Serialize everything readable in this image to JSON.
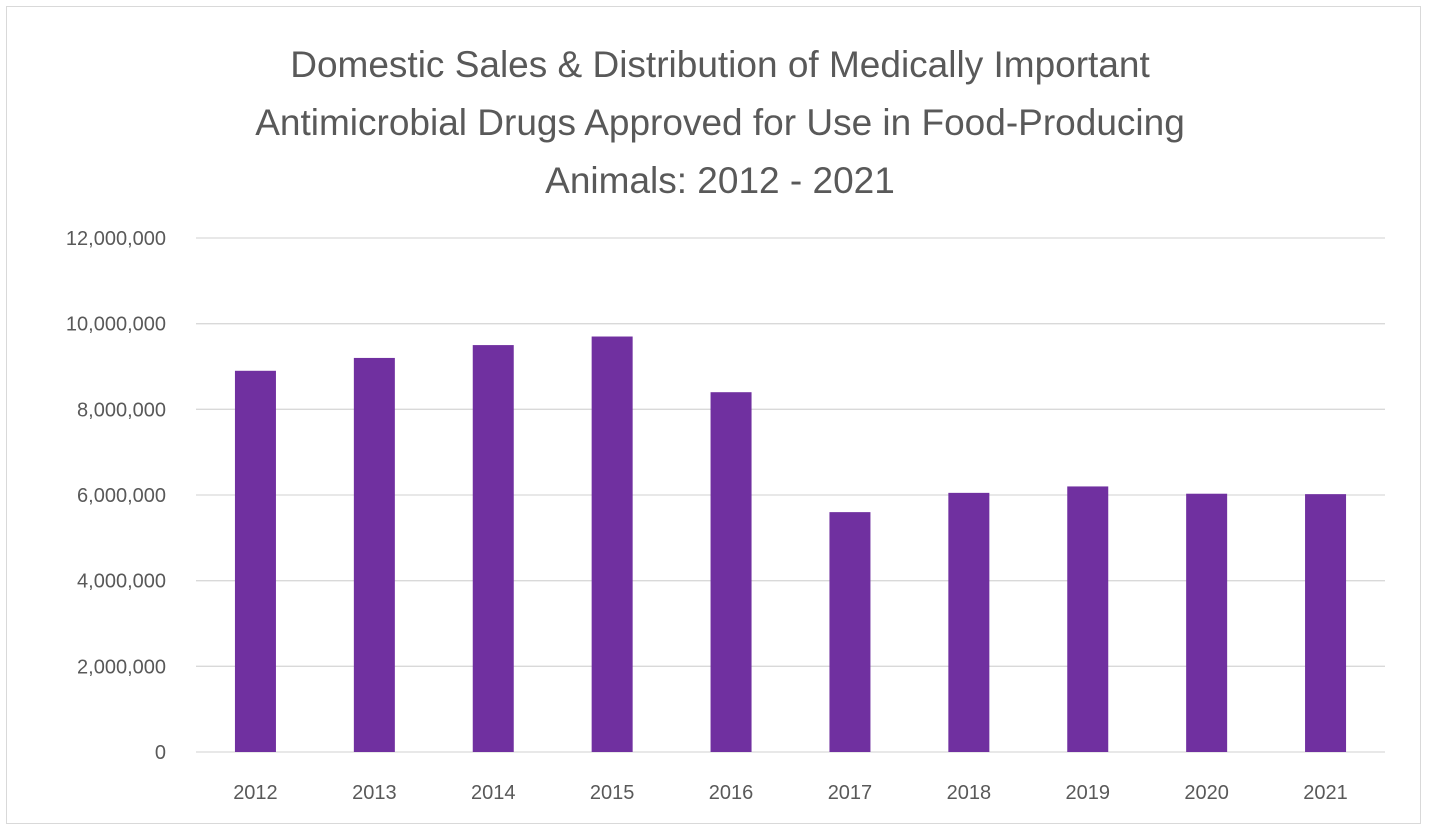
{
  "chart_data": {
    "type": "bar",
    "title_lines": [
      "Domestic Sales & Distribution of Medically Important",
      "Antimicrobial Drugs Approved for Use in Food-Producing",
      "Animals: 2012 - 2021"
    ],
    "categories": [
      "2012",
      "2013",
      "2014",
      "2015",
      "2016",
      "2017",
      "2018",
      "2019",
      "2020",
      "2021"
    ],
    "values": [
      8900000,
      9200000,
      9500000,
      9700000,
      8400000,
      5600000,
      6050000,
      6200000,
      6030000,
      6020000
    ],
    "xlabel": "",
    "ylabel": "",
    "ylim": [
      0,
      12000000
    ],
    "yticks": [
      0,
      2000000,
      4000000,
      6000000,
      8000000,
      10000000,
      12000000
    ],
    "ytick_labels": [
      "0",
      "2,000,000",
      "4,000,000",
      "6,000,000",
      "8,000,000",
      "10,000,000",
      "12,000,000"
    ],
    "grid": true,
    "legend": "none",
    "colors": {
      "bar": "#7030a0",
      "grid": "#d9d9d9",
      "text": "#595959"
    }
  }
}
